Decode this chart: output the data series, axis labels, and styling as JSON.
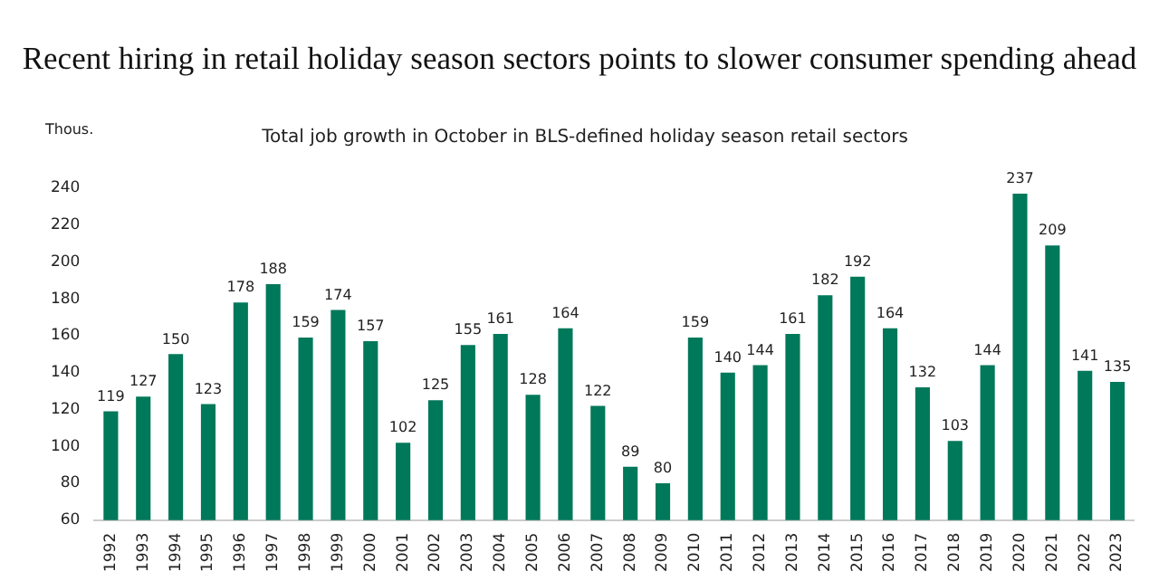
{
  "chart_data": {
    "type": "bar",
    "title": "Recent hiring in retail holiday season sectors points to slower consumer spending ahead",
    "subtitle": "Total job growth in October in BLS-defined holiday season retail sectors",
    "ylabel": "Thous.",
    "categories": [
      "1992",
      "1993",
      "1994",
      "1995",
      "1996",
      "1997",
      "1998",
      "1999",
      "2000",
      "2001",
      "2002",
      "2003",
      "2004",
      "2005",
      "2006",
      "2007",
      "2008",
      "2009",
      "2010",
      "2011",
      "2012",
      "2013",
      "2014",
      "2015",
      "2016",
      "2017",
      "2018",
      "2019",
      "2020",
      "2021",
      "2022",
      "2023"
    ],
    "values": [
      119,
      127,
      150,
      123,
      178,
      188,
      159,
      174,
      157,
      102,
      125,
      155,
      161,
      128,
      164,
      122,
      89,
      80,
      159,
      140,
      144,
      161,
      182,
      192,
      164,
      132,
      103,
      144,
      237,
      209,
      141,
      135
    ],
    "color": "#00785a",
    "ylim": [
      60,
      240
    ],
    "yticks": [
      60,
      80,
      100,
      120,
      140,
      160,
      180,
      200,
      220,
      240
    ],
    "grid": false,
    "legend": false,
    "data_labels": true
  }
}
